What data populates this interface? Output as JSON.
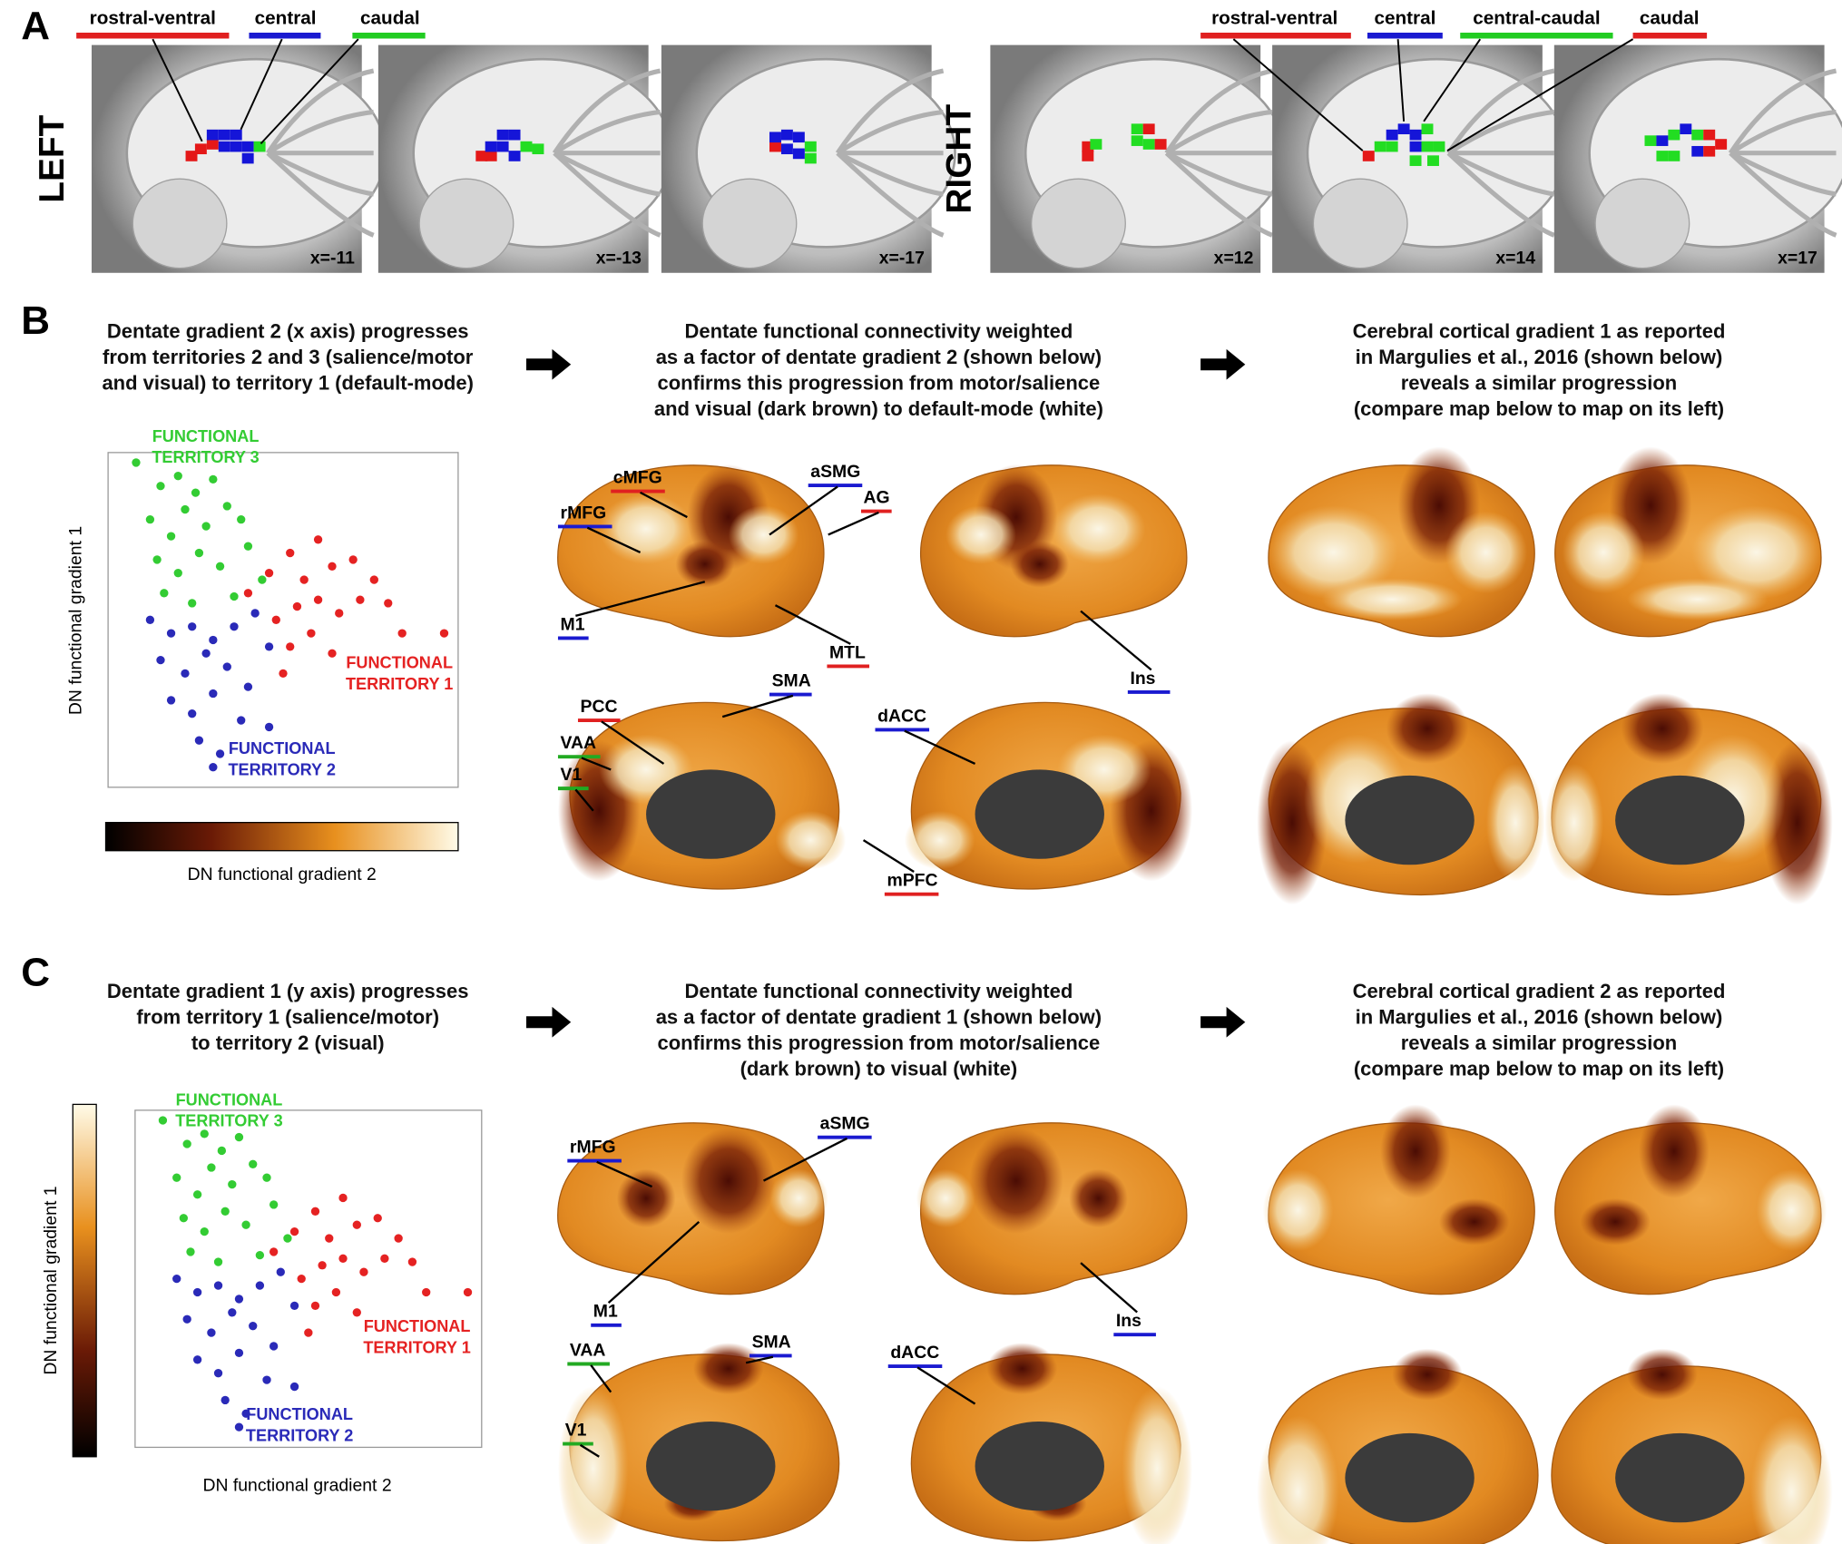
{
  "panel_a": {
    "letter": "A",
    "left_label": "LEFT",
    "right_label": "RIGHT",
    "left_legend": [
      {
        "text": "rostral-ventral",
        "color": "#e02020"
      },
      {
        "text": "central",
        "color": "#1a1ad0"
      },
      {
        "text": "caudal",
        "color": "#22cc22"
      }
    ],
    "right_legend": [
      {
        "text": "rostral-ventral",
        "color": "#e02020"
      },
      {
        "text": "central",
        "color": "#1a1ad0"
      },
      {
        "text": "central-caudal",
        "color": "#22cc22"
      },
      {
        "text": "caudal",
        "color": "#e02020"
      }
    ],
    "slices": [
      "x=-11",
      "x=-13",
      "x=-17",
      "x=12",
      "x=14",
      "x=17"
    ]
  },
  "panel_b": {
    "letter": "B",
    "caption_1": [
      "Dentate gradient 2 (x axis) progresses",
      "from territories 2 and 3 (salience/motor",
      "and visual) to territory 1 (default-mode)"
    ],
    "caption_2": [
      "Dentate functional connectivity weighted",
      "as a factor of dentate gradient 2 (shown below)",
      "confirms this progression from motor/salience",
      "and visual (dark brown) to default-mode (white)"
    ],
    "caption_3": [
      "Cerebral cortical gradient 1 as reported",
      "in Margulies et al., 2016 (shown below)",
      "reveals a similar progression",
      "(compare map below to map on its left)"
    ],
    "y_label": "DN functional gradient 1",
    "colorbar_label": "DN functional gradient 2",
    "regions": [
      {
        "text": "rMFG",
        "underline": "#1a1ad0"
      },
      {
        "text": "cMFG",
        "underline": "#e02020"
      },
      {
        "text": "aSMG",
        "underline": "#1a1ad0"
      },
      {
        "text": "AG",
        "underline": "#e02020"
      },
      {
        "text": "M1",
        "underline": "#1a1ad0"
      },
      {
        "text": "MTL",
        "underline": "#e02020"
      },
      {
        "text": "Ins",
        "underline": "#1a1ad0"
      },
      {
        "text": "SMA",
        "underline": "#1a1ad0"
      },
      {
        "text": "PCC",
        "underline": "#e02020"
      },
      {
        "text": "dACC",
        "underline": "#1a1ad0"
      },
      {
        "text": "VAA",
        "underline": "#22aa22"
      },
      {
        "text": "V1",
        "underline": "#22aa22"
      },
      {
        "text": "mPFC",
        "underline": "#e02020"
      }
    ]
  },
  "panel_c": {
    "letter": "C",
    "caption_1": [
      "Dentate gradient 1 (y axis) progresses",
      "from territory 1 (salience/motor)",
      "to territory 2 (visual)"
    ],
    "caption_2": [
      "Dentate functional connectivity weighted",
      "as a factor of dentate gradient 1 (shown below)",
      "confirms this progression from motor/salience",
      "(dark brown) to visual (white)"
    ],
    "caption_3": [
      "Cerebral cortical gradient 2 as reported",
      "in Margulies et al., 2016 (shown below)",
      "reveals a similar progression",
      "(compare map below to map on its left)"
    ],
    "y_label": "DN functional gradient 1",
    "x_label": "DN functional gradient 2",
    "regions": [
      {
        "text": "rMFG",
        "underline": "#1a1ad0"
      },
      {
        "text": "aSMG",
        "underline": "#1a1ad0"
      },
      {
        "text": "M1",
        "underline": "#1a1ad0"
      },
      {
        "text": "Ins",
        "underline": "#1a1ad0"
      },
      {
        "text": "SMA",
        "underline": "#1a1ad0"
      },
      {
        "text": "VAA",
        "underline": "#22aa22"
      },
      {
        "text": "dACC",
        "underline": "#1a1ad0"
      },
      {
        "text": "V1",
        "underline": "#22aa22"
      }
    ]
  },
  "dentate_scatter": {
    "type": "scatter",
    "xlim": [
      0,
      100
    ],
    "ylim": [
      0,
      100
    ],
    "series": [
      {
        "label": [
          "FUNCTIONAL",
          "TERRITORY 3"
        ],
        "color": "#33cc33",
        "x": [
          8,
          15,
          20,
          25,
          30,
          12,
          18,
          22,
          28,
          34,
          38,
          14,
          20,
          26,
          32,
          40,
          44,
          16,
          24,
          36
        ],
        "y": [
          97,
          90,
          93,
          88,
          92,
          80,
          75,
          83,
          78,
          84,
          80,
          68,
          64,
          70,
          66,
          72,
          62,
          58,
          55,
          57
        ]
      },
      {
        "label": [
          "FUNCTIONAL",
          "TERRITORY 1"
        ],
        "color": "#e52222",
        "x": [
          40,
          46,
          52,
          56,
          60,
          64,
          70,
          76,
          48,
          54,
          60,
          66,
          72,
          80,
          52,
          58,
          64,
          84,
          96,
          50
        ],
        "y": [
          58,
          64,
          70,
          62,
          74,
          66,
          68,
          62,
          50,
          54,
          56,
          52,
          56,
          55,
          42,
          46,
          40,
          46,
          46,
          34
        ]
      },
      {
        "label": [
          "FUNCTIONAL",
          "TERRITORY 2"
        ],
        "color": "#2a2ab8",
        "x": [
          12,
          18,
          24,
          30,
          36,
          42,
          15,
          22,
          28,
          34,
          40,
          46,
          18,
          24,
          30,
          38,
          26,
          32,
          30,
          46
        ],
        "y": [
          50,
          46,
          48,
          44,
          48,
          52,
          38,
          34,
          40,
          36,
          30,
          42,
          26,
          22,
          28,
          20,
          14,
          10,
          6,
          18
        ]
      }
    ]
  }
}
